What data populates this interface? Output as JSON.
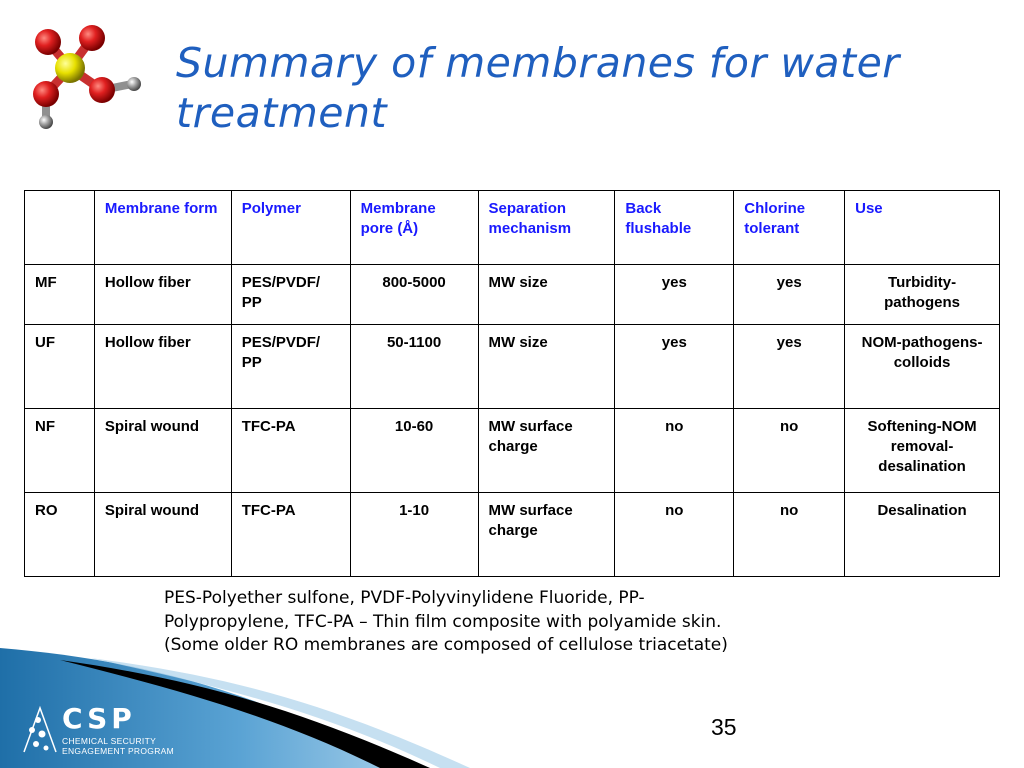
{
  "slide": {
    "title": "Summary of membranes for water treatment",
    "page_number": "35"
  },
  "table": {
    "headers": [
      "",
      "Membrane form",
      "Polymer",
      "Membrane pore (Å)",
      "Separation mechanism",
      "Back flushable",
      "Chlorine tolerant",
      "Use"
    ],
    "rows": [
      [
        "MF",
        "Hollow fiber",
        "PES/PVDF/ PP",
        "800-5000",
        "MW size",
        "yes",
        "yes",
        "Turbidity-pathogens"
      ],
      [
        "UF",
        "Hollow fiber",
        "PES/PVDF/ PP",
        "50-1100",
        "MW size",
        "yes",
        "yes",
        "NOM-pathogens-colloids"
      ],
      [
        "NF",
        "Spiral wound",
        "TFC-PA",
        "10-60",
        "MW surface charge",
        "no",
        "no",
        "Softening-NOM removal-desalination"
      ],
      [
        "RO",
        "Spiral wound",
        "TFC-PA",
        "1-10",
        "MW surface charge",
        "no",
        "no",
        "Desalination"
      ]
    ]
  },
  "footnote": {
    "line1": "PES-Polyether sulfone, PVDF-Polyvinylidene Fluoride, PP-",
    "line2": "Polypropylene, TFC-PA – Thin film composite with polyamide skin.",
    "line3": "(Some older RO membranes are composed of cellulose triacetate)"
  },
  "logo": {
    "name": "CSP",
    "subtitle_line1": "CHEMICAL SECURITY",
    "subtitle_line2": "ENGAGEMENT PROGRAM"
  },
  "icons": {
    "molecule": "molecule-icon",
    "csp_mark": "csp-mark-icon"
  },
  "colors": {
    "title": "#1f5fbf",
    "header_text": "#1a1aff",
    "swoosh_blue": "#2a7ab8"
  }
}
